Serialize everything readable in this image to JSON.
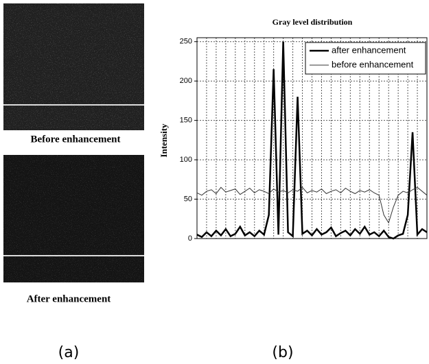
{
  "panels": {
    "a": {
      "label": "(a)",
      "captions": [
        "Before enhancement",
        "After enhancement"
      ]
    },
    "b": {
      "label": "(b)"
    }
  },
  "chart_data": {
    "type": "line",
    "title": "Gray level distribution",
    "y_label": "Intensity",
    "x": [
      0,
      1,
      2,
      3,
      4,
      5,
      6,
      7,
      8,
      9,
      10,
      11,
      12,
      13,
      14,
      15,
      16,
      17,
      18,
      19,
      20,
      21,
      22,
      23,
      24,
      25,
      26,
      27,
      28,
      29,
      30,
      31,
      32,
      33,
      34,
      35,
      36,
      37,
      38,
      39,
      40,
      41,
      42,
      43,
      44,
      45,
      46,
      47,
      48
    ],
    "xlim": [
      0,
      48
    ],
    "xticks": [
      0,
      2,
      4,
      6,
      8,
      10,
      12,
      14,
      16,
      18,
      20,
      22,
      24,
      26,
      28,
      30,
      32,
      34,
      36,
      38,
      40,
      42,
      44,
      46,
      48
    ],
    "ylim": [
      0,
      255
    ],
    "yticks": [
      0,
      50,
      100,
      150,
      200,
      250
    ],
    "grid": true,
    "legend": "upper right",
    "series": [
      {
        "name": "after enhancement",
        "color": "#000000",
        "values": [
          5,
          2,
          8,
          3,
          10,
          4,
          12,
          3,
          6,
          15,
          4,
          8,
          3,
          10,
          5,
          30,
          215,
          5,
          250,
          8,
          3,
          180,
          6,
          10,
          4,
          12,
          5,
          8,
          14,
          3,
          7,
          10,
          4,
          12,
          6,
          15,
          5,
          8,
          3,
          10,
          2,
          0,
          4,
          6,
          30,
          135,
          5,
          12,
          8
        ]
      },
      {
        "name": "before enhancement",
        "color": "#333333",
        "values": [
          58,
          55,
          60,
          62,
          57,
          65,
          59,
          61,
          63,
          56,
          60,
          64,
          58,
          62,
          60,
          57,
          63,
          59,
          61,
          58,
          62,
          60,
          65,
          58,
          61,
          59,
          63,
          57,
          60,
          62,
          58,
          64,
          60,
          57,
          61,
          59,
          62,
          58,
          55,
          30,
          20,
          40,
          55,
          60,
          58,
          62,
          65,
          60,
          55
        ]
      }
    ]
  }
}
